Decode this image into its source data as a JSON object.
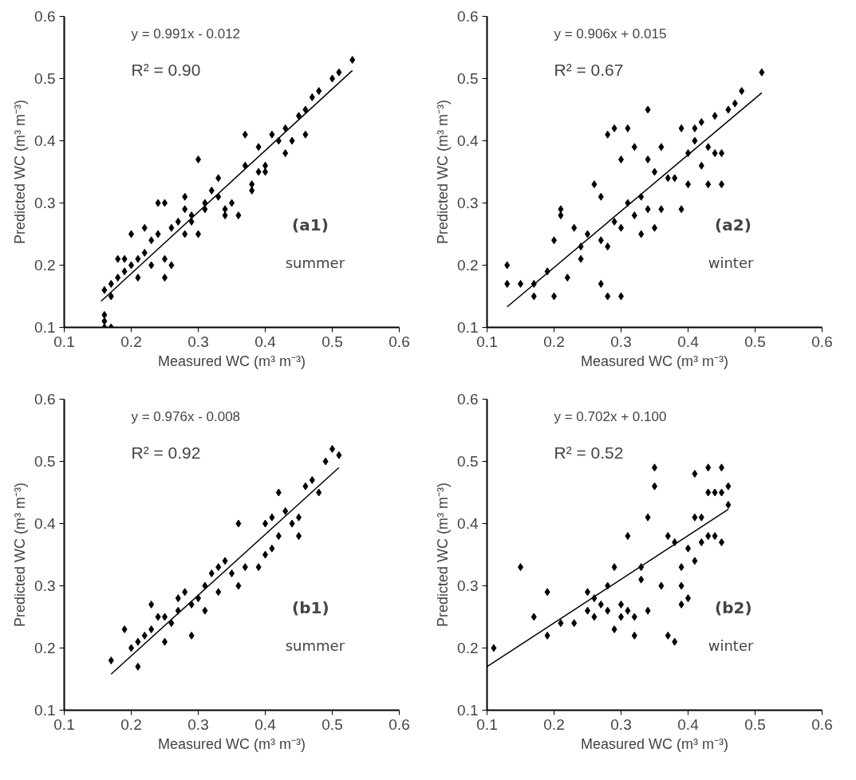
{
  "chart_data": [
    {
      "type": "scatter",
      "xlabel": "Measured WC (m³ m⁻³)",
      "ylabel": "Predicted WC (m³ m⁻³)",
      "xlim": [
        0.1,
        0.6
      ],
      "ylim": [
        0.1,
        0.6
      ],
      "xticks": [
        0.1,
        0.2,
        0.3,
        0.4,
        0.5,
        0.6
      ],
      "yticks": [
        0.1,
        0.2,
        0.3,
        0.4,
        0.5,
        0.6
      ],
      "grid": false,
      "annotations": [
        "y = 0.991x  - 0.012",
        "R² = 0.90",
        "(a1)",
        "summer"
      ],
      "series": [
        {
          "marker": "diamond",
          "color": "#000000",
          "x": [
            0.16,
            0.16,
            0.16,
            0.17,
            0.17,
            0.16,
            0.17,
            0.18,
            0.18,
            0.19,
            0.19,
            0.2,
            0.2,
            0.21,
            0.21,
            0.22,
            0.22,
            0.23,
            0.23,
            0.24,
            0.24,
            0.25,
            0.25,
            0.25,
            0.26,
            0.26,
            0.27,
            0.28,
            0.28,
            0.28,
            0.29,
            0.29,
            0.3,
            0.3,
            0.31,
            0.31,
            0.32,
            0.33,
            0.33,
            0.34,
            0.34,
            0.35,
            0.36,
            0.37,
            0.37,
            0.38,
            0.38,
            0.39,
            0.39,
            0.4,
            0.4,
            0.41,
            0.42,
            0.43,
            0.43,
            0.44,
            0.45,
            0.46,
            0.46,
            0.47,
            0.48,
            0.5,
            0.51,
            0.53
          ],
          "values": [
            0.1,
            0.11,
            0.12,
            0.1,
            0.15,
            0.16,
            0.17,
            0.18,
            0.21,
            0.19,
            0.21,
            0.2,
            0.25,
            0.18,
            0.21,
            0.22,
            0.26,
            0.2,
            0.24,
            0.3,
            0.25,
            0.18,
            0.21,
            0.3,
            0.26,
            0.2,
            0.27,
            0.29,
            0.31,
            0.25,
            0.27,
            0.28,
            0.25,
            0.37,
            0.3,
            0.29,
            0.32,
            0.31,
            0.34,
            0.29,
            0.28,
            0.3,
            0.28,
            0.36,
            0.41,
            0.32,
            0.33,
            0.39,
            0.35,
            0.36,
            0.35,
            0.41,
            0.4,
            0.42,
            0.38,
            0.4,
            0.44,
            0.45,
            0.41,
            0.47,
            0.48,
            0.5,
            0.51,
            0.53
          ]
        },
        {
          "type": "line",
          "color": "#000000",
          "x": [
            0.155,
            0.53
          ],
          "values": [
            0.142,
            0.513
          ]
        }
      ]
    },
    {
      "type": "scatter",
      "xlabel": "Measured WC (m³ m⁻³)",
      "ylabel": "Predicted WC (m³ m⁻³)",
      "xlim": [
        0.1,
        0.6
      ],
      "ylim": [
        0.1,
        0.6
      ],
      "xticks": [
        0.1,
        0.2,
        0.3,
        0.4,
        0.5,
        0.6
      ],
      "yticks": [
        0.1,
        0.2,
        0.3,
        0.4,
        0.5,
        0.6
      ],
      "grid": false,
      "annotations": [
        "y = 0.906x  + 0.015",
        "R² = 0.67",
        "(a2)",
        "winter"
      ],
      "series": [
        {
          "marker": "diamond",
          "color": "#000000",
          "x": [
            0.13,
            0.13,
            0.15,
            0.17,
            0.17,
            0.19,
            0.2,
            0.2,
            0.21,
            0.21,
            0.22,
            0.23,
            0.24,
            0.24,
            0.25,
            0.26,
            0.27,
            0.27,
            0.27,
            0.28,
            0.28,
            0.28,
            0.29,
            0.29,
            0.3,
            0.3,
            0.3,
            0.31,
            0.31,
            0.32,
            0.32,
            0.33,
            0.33,
            0.34,
            0.34,
            0.34,
            0.35,
            0.35,
            0.36,
            0.36,
            0.37,
            0.38,
            0.39,
            0.39,
            0.4,
            0.4,
            0.41,
            0.41,
            0.42,
            0.42,
            0.43,
            0.43,
            0.44,
            0.44,
            0.45,
            0.45,
            0.46,
            0.47,
            0.48,
            0.51
          ],
          "values": [
            0.2,
            0.17,
            0.17,
            0.17,
            0.15,
            0.19,
            0.15,
            0.24,
            0.29,
            0.28,
            0.18,
            0.26,
            0.23,
            0.21,
            0.25,
            0.33,
            0.17,
            0.31,
            0.24,
            0.23,
            0.15,
            0.41,
            0.42,
            0.27,
            0.15,
            0.26,
            0.37,
            0.42,
            0.3,
            0.28,
            0.39,
            0.31,
            0.25,
            0.37,
            0.45,
            0.29,
            0.35,
            0.26,
            0.39,
            0.29,
            0.34,
            0.34,
            0.29,
            0.42,
            0.33,
            0.38,
            0.4,
            0.42,
            0.43,
            0.36,
            0.39,
            0.33,
            0.38,
            0.44,
            0.33,
            0.38,
            0.45,
            0.46,
            0.48,
            0.51
          ]
        },
        {
          "type": "line",
          "color": "#000000",
          "x": [
            0.13,
            0.51
          ],
          "values": [
            0.133,
            0.477
          ]
        }
      ]
    },
    {
      "type": "scatter",
      "xlabel": "Measured WC (m³ m⁻³)",
      "ylabel": "Predicted WC (m³ m⁻³)",
      "xlim": [
        0.1,
        0.6
      ],
      "ylim": [
        0.1,
        0.6
      ],
      "xticks": [
        0.1,
        0.2,
        0.3,
        0.4,
        0.5,
        0.6
      ],
      "yticks": [
        0.1,
        0.2,
        0.3,
        0.4,
        0.5,
        0.6
      ],
      "grid": false,
      "annotations": [
        "y = 0.976x  - 0.008",
        "R² = 0.92",
        "(b1)",
        "summer"
      ],
      "series": [
        {
          "marker": "diamond",
          "color": "#000000",
          "x": [
            0.17,
            0.19,
            0.2,
            0.21,
            0.21,
            0.22,
            0.23,
            0.23,
            0.24,
            0.25,
            0.25,
            0.26,
            0.27,
            0.27,
            0.28,
            0.29,
            0.29,
            0.3,
            0.31,
            0.31,
            0.32,
            0.33,
            0.33,
            0.34,
            0.35,
            0.36,
            0.36,
            0.37,
            0.39,
            0.4,
            0.4,
            0.41,
            0.41,
            0.42,
            0.42,
            0.43,
            0.44,
            0.45,
            0.45,
            0.46,
            0.47,
            0.48,
            0.49,
            0.5,
            0.51
          ],
          "values": [
            0.18,
            0.23,
            0.2,
            0.17,
            0.21,
            0.22,
            0.27,
            0.23,
            0.25,
            0.21,
            0.25,
            0.24,
            0.26,
            0.28,
            0.29,
            0.22,
            0.27,
            0.28,
            0.26,
            0.3,
            0.32,
            0.29,
            0.33,
            0.34,
            0.32,
            0.4,
            0.3,
            0.33,
            0.33,
            0.35,
            0.4,
            0.36,
            0.41,
            0.45,
            0.38,
            0.42,
            0.4,
            0.41,
            0.38,
            0.46,
            0.47,
            0.45,
            0.5,
            0.52,
            0.51
          ]
        },
        {
          "type": "line",
          "color": "#000000",
          "x": [
            0.17,
            0.51
          ],
          "values": [
            0.158,
            0.49
          ]
        }
      ]
    },
    {
      "type": "scatter",
      "xlabel": "Measured WC (m³ m⁻³)",
      "ylabel": "Predicted WC (m³ m⁻³)",
      "xlim": [
        0.1,
        0.6
      ],
      "ylim": [
        0.1,
        0.6
      ],
      "xticks": [
        0.1,
        0.2,
        0.3,
        0.4,
        0.5,
        0.6
      ],
      "yticks": [
        0.1,
        0.2,
        0.3,
        0.4,
        0.5,
        0.6
      ],
      "grid": false,
      "annotations": [
        "y = 0.702x  + 0.100",
        "R² = 0.52",
        "(b2)",
        "winter"
      ],
      "series": [
        {
          "marker": "diamond",
          "color": "#000000",
          "x": [
            0.11,
            0.15,
            0.17,
            0.19,
            0.19,
            0.21,
            0.23,
            0.25,
            0.25,
            0.26,
            0.26,
            0.27,
            0.28,
            0.28,
            0.29,
            0.29,
            0.3,
            0.3,
            0.31,
            0.31,
            0.32,
            0.32,
            0.33,
            0.33,
            0.34,
            0.34,
            0.35,
            0.35,
            0.36,
            0.37,
            0.37,
            0.38,
            0.38,
            0.39,
            0.39,
            0.39,
            0.4,
            0.4,
            0.41,
            0.41,
            0.41,
            0.42,
            0.42,
            0.43,
            0.43,
            0.43,
            0.44,
            0.44,
            0.45,
            0.45,
            0.45,
            0.46,
            0.46
          ],
          "values": [
            0.2,
            0.33,
            0.25,
            0.29,
            0.22,
            0.24,
            0.24,
            0.29,
            0.26,
            0.25,
            0.28,
            0.27,
            0.26,
            0.3,
            0.33,
            0.23,
            0.27,
            0.25,
            0.38,
            0.26,
            0.25,
            0.22,
            0.33,
            0.31,
            0.26,
            0.41,
            0.49,
            0.46,
            0.3,
            0.38,
            0.22,
            0.21,
            0.37,
            0.27,
            0.33,
            0.3,
            0.36,
            0.28,
            0.34,
            0.41,
            0.48,
            0.37,
            0.41,
            0.49,
            0.45,
            0.38,
            0.45,
            0.38,
            0.49,
            0.37,
            0.45,
            0.46,
            0.43
          ]
        },
        {
          "type": "line",
          "color": "#000000",
          "x": [
            0.1,
            0.46
          ],
          "values": [
            0.17,
            0.423
          ]
        }
      ]
    }
  ]
}
